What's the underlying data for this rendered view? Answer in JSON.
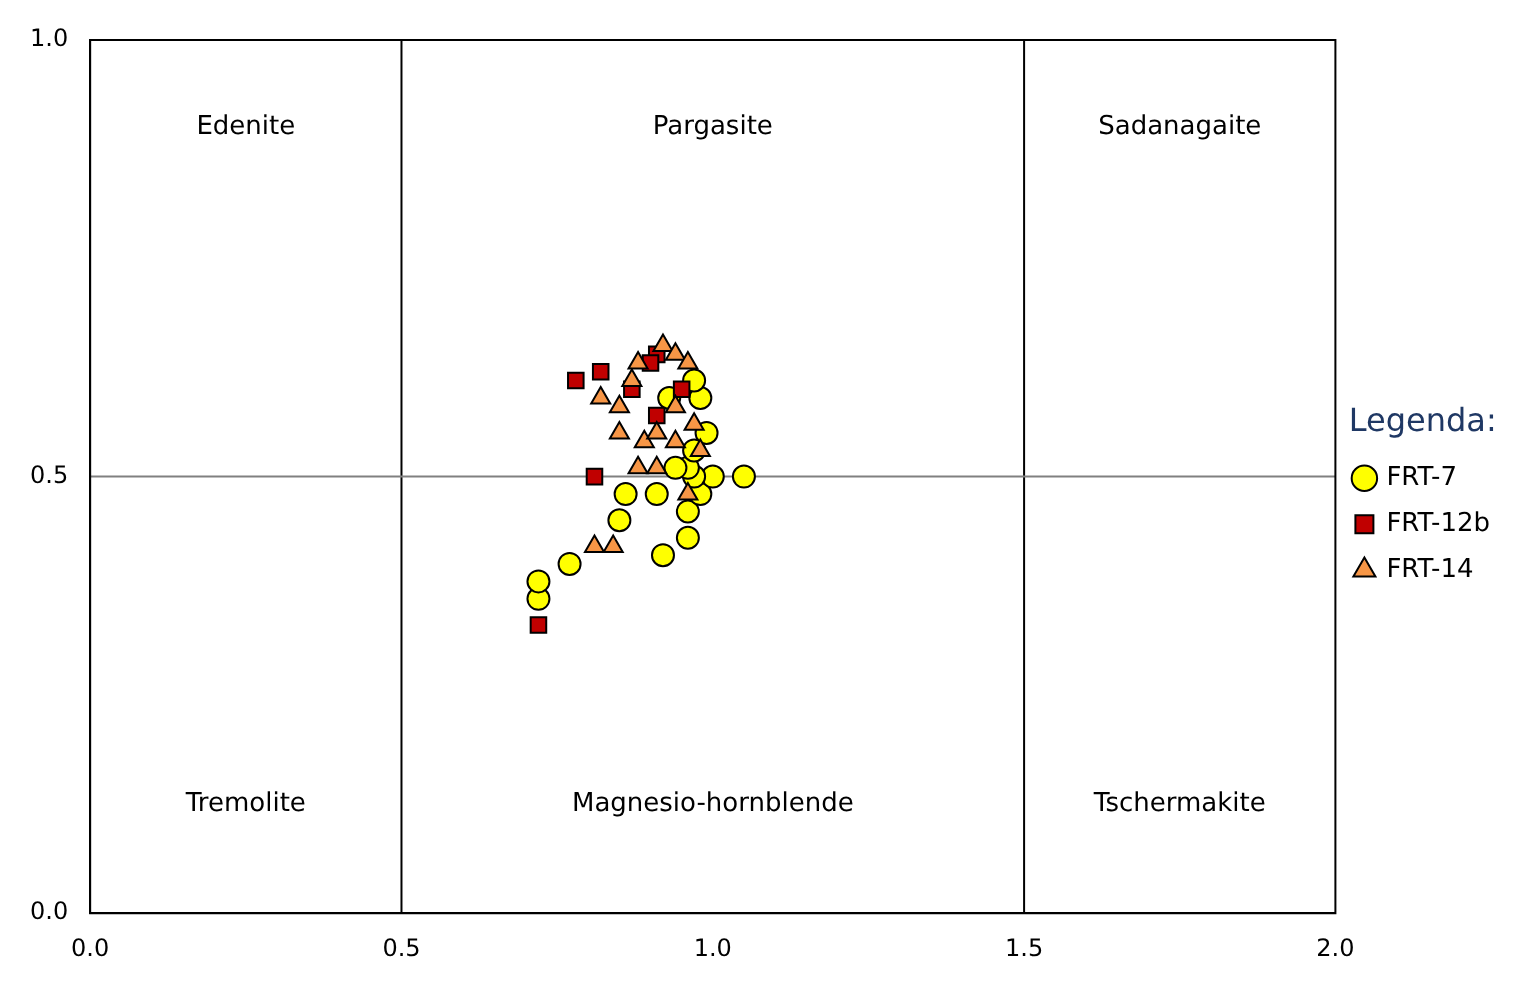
{
  "chart_data": {
    "type": "scatter",
    "legend_title": "Legenda:",
    "legend": "right",
    "grid": false,
    "xlim": [
      0,
      2
    ],
    "xticks": [
      {
        "value": 0,
        "label": "0.0"
      },
      {
        "value": 0.5,
        "label": "0.5"
      },
      {
        "value": 1,
        "label": "1.0"
      },
      {
        "value": 1.5,
        "label": "1.5"
      },
      {
        "value": 2,
        "label": "2.0"
      }
    ],
    "ylim": [
      0,
      1
    ],
    "yticks": [
      {
        "value": 0,
        "label": "0.0"
      },
      {
        "value": 0.5,
        "label": "0.5"
      },
      {
        "value": 1,
        "label": "1.0"
      }
    ],
    "ref_lines": [
      {
        "axis": "x",
        "value": 0.5,
        "color": "#000000"
      },
      {
        "axis": "x",
        "value": 1.5,
        "color": "#000000"
      },
      {
        "axis": "y",
        "value": 0.5,
        "color": "#808080"
      }
    ],
    "annotations": [
      "Edenite",
      "Pargasite",
      "Sadanagaite",
      "Tremolite",
      "Magnesio-hornblende",
      "Tschermakite"
    ],
    "series": [
      {
        "name": "FRT-7",
        "color": "#ffff00",
        "marker": "circle",
        "x": [
          0.72,
          0.72,
          0.77,
          0.85,
          0.86,
          0.91,
          0.92,
          0.96,
          0.96,
          0.98,
          1.0,
          1.05,
          0.97,
          0.96,
          0.97,
          0.99,
          0.98,
          0.97,
          0.93,
          0.94
        ],
        "values": [
          0.36,
          0.38,
          0.4,
          0.45,
          0.48,
          0.48,
          0.41,
          0.43,
          0.46,
          0.48,
          0.5,
          0.5,
          0.5,
          0.51,
          0.53,
          0.55,
          0.59,
          0.61,
          0.59,
          0.51
        ]
      },
      {
        "name": "FRT-12b",
        "color": "#c00000",
        "marker": "square",
        "x": [
          0.78,
          0.82,
          0.91,
          0.9,
          0.87,
          0.95,
          0.91,
          0.81,
          0.72
        ],
        "values": [
          0.61,
          0.62,
          0.64,
          0.63,
          0.6,
          0.6,
          0.57,
          0.5,
          0.33
        ]
      },
      {
        "name": "FRT-14",
        "color": "#f79646",
        "marker": "triangle",
        "x": [
          0.82,
          0.92,
          0.94,
          0.96,
          0.88,
          0.85,
          0.85,
          0.89,
          0.91,
          0.94,
          0.97,
          0.98,
          0.88,
          0.91,
          0.96,
          0.81,
          0.84,
          0.87,
          0.94
        ],
        "values": [
          0.59,
          0.65,
          0.64,
          0.63,
          0.63,
          0.58,
          0.55,
          0.54,
          0.55,
          0.54,
          0.56,
          0.53,
          0.51,
          0.51,
          0.48,
          0.42,
          0.42,
          0.61,
          0.58
        ]
      }
    ]
  }
}
